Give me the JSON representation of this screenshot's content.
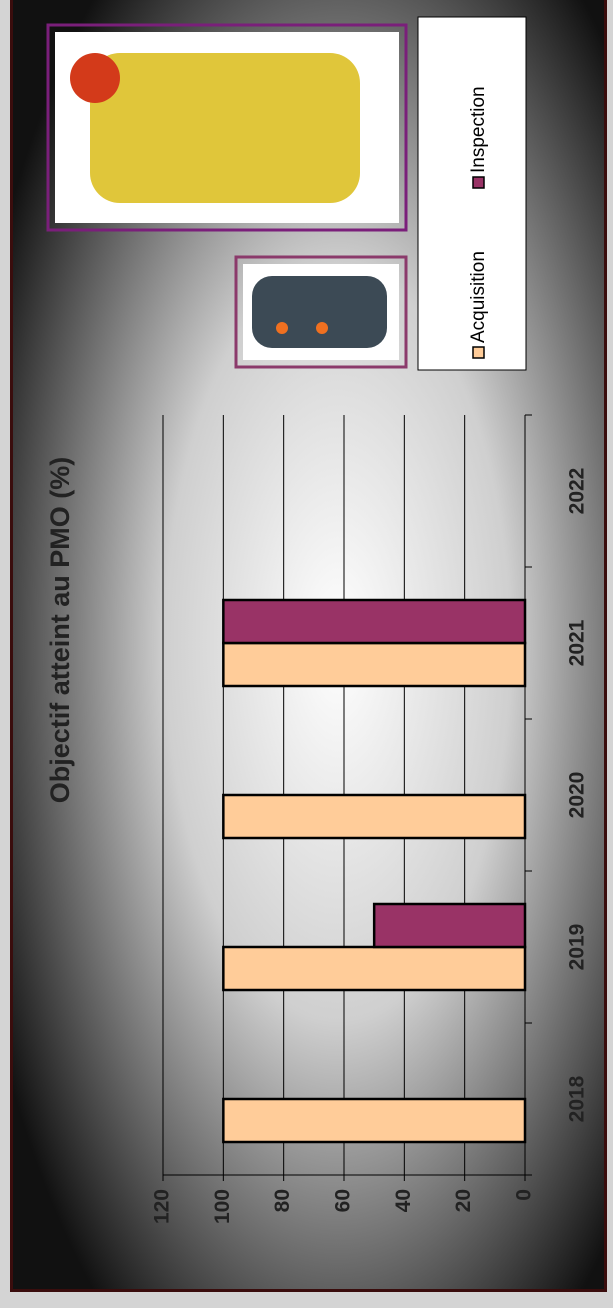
{
  "chart_data": {
    "type": "bar",
    "title": "Objectif atteint au PMO (%)",
    "categories": [
      "2018",
      "2019",
      "2020",
      "2021",
      "2022"
    ],
    "series": [
      {
        "name": "Acquisition",
        "color": "#ffcc99",
        "values": [
          100,
          100,
          100,
          100,
          null
        ]
      },
      {
        "name": "Inspection",
        "color": "#993366",
        "values": [
          null,
          50,
          null,
          100,
          null
        ]
      }
    ],
    "ylim": [
      0,
      120
    ],
    "yticks": [
      0,
      20,
      40,
      60,
      80,
      100,
      120
    ],
    "grid": true,
    "legend": "right"
  }
}
